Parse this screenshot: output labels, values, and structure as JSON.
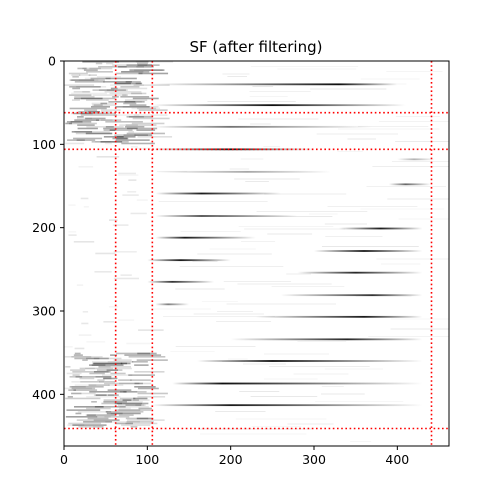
{
  "chart_data": {
    "type": "heatmap",
    "title": "SF (after filtering)",
    "xlabel": "",
    "ylabel": "",
    "xlim": [
      0,
      462
    ],
    "ylim": [
      462,
      0
    ],
    "x_ticks": [
      0,
      100,
      200,
      300,
      400
    ],
    "y_ticks": [
      0,
      100,
      200,
      300,
      400
    ],
    "colormap": "gray_r",
    "grid": false,
    "reference_lines": {
      "color": "#ff0000",
      "style": "dotted",
      "vertical_x": [
        62,
        106,
        441
      ],
      "horizontal_y": [
        62,
        106,
        441
      ]
    },
    "streaks": [
      {
        "row": 28,
        "x_start": 106,
        "x_end": 400,
        "peak_x": 330,
        "intensity": 0.95
      },
      {
        "row": 53,
        "x_start": 106,
        "x_end": 410,
        "peak_x": 250,
        "intensity": 0.95
      },
      {
        "row": 79,
        "x_start": 106,
        "x_end": 370,
        "peak_x": 200,
        "intensity": 0.55
      },
      {
        "row": 106,
        "x_start": 106,
        "x_end": 300,
        "peak_x": 200,
        "intensity": 0.9
      },
      {
        "row": 133,
        "x_start": 110,
        "x_end": 320,
        "peak_x": 220,
        "intensity": 0.35
      },
      {
        "row": 159,
        "x_start": 110,
        "x_end": 260,
        "peak_x": 165,
        "intensity": 0.9
      },
      {
        "row": 186,
        "x_start": 110,
        "x_end": 280,
        "peak_x": 165,
        "intensity": 0.7
      },
      {
        "row": 212,
        "x_start": 110,
        "x_end": 230,
        "peak_x": 145,
        "intensity": 0.9
      },
      {
        "row": 239,
        "x_start": 100,
        "x_end": 200,
        "peak_x": 140,
        "intensity": 0.9
      },
      {
        "row": 265,
        "x_start": 100,
        "x_end": 180,
        "peak_x": 130,
        "intensity": 0.8
      },
      {
        "row": 292,
        "x_start": 110,
        "x_end": 150,
        "peak_x": 125,
        "intensity": 0.5
      },
      {
        "row": 201,
        "x_start": 330,
        "x_end": 430,
        "peak_x": 380,
        "intensity": 0.9
      },
      {
        "row": 228,
        "x_start": 300,
        "x_end": 430,
        "peak_x": 360,
        "intensity": 0.9
      },
      {
        "row": 254,
        "x_start": 280,
        "x_end": 430,
        "peak_x": 350,
        "intensity": 0.85
      },
      {
        "row": 281,
        "x_start": 260,
        "x_end": 430,
        "peak_x": 370,
        "intensity": 0.8
      },
      {
        "row": 307,
        "x_start": 230,
        "x_end": 430,
        "peak_x": 360,
        "intensity": 0.9
      },
      {
        "row": 334,
        "x_start": 200,
        "x_end": 430,
        "peak_x": 340,
        "intensity": 0.85
      },
      {
        "row": 360,
        "x_start": 160,
        "x_end": 430,
        "peak_x": 250,
        "intensity": 0.95
      },
      {
        "row": 387,
        "x_start": 130,
        "x_end": 430,
        "peak_x": 190,
        "intensity": 0.95
      },
      {
        "row": 413,
        "x_start": 106,
        "x_end": 430,
        "peak_x": 200,
        "intensity": 0.9
      },
      {
        "row": 148,
        "x_start": 390,
        "x_end": 440,
        "peak_x": 410,
        "intensity": 0.6
      },
      {
        "row": 118,
        "x_start": 400,
        "x_end": 445,
        "peak_x": 420,
        "intensity": 0.3
      }
    ],
    "left_band": {
      "x_start": 0,
      "x_end": 106,
      "dense_rows": [
        [
          0,
          100
        ],
        [
          350,
          440
        ]
      ],
      "sparse_rows": [
        [
          100,
          350
        ]
      ]
    }
  }
}
